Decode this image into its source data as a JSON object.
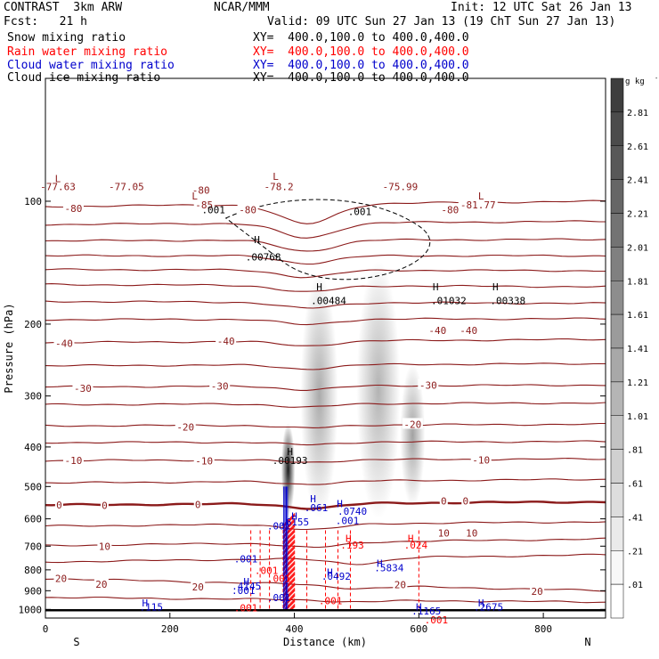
{
  "header": {
    "title_left": "CONTRAST  3km ARW",
    "fcst": "Fcst:   21 h",
    "center": "NCAR/MMM",
    "init": "Init: 12 UTC Sat 26 Jan 13",
    "valid": "Valid: 09 UTC Sun 27 Jan 13 (19 ChT Sun 27 Jan 13)"
  },
  "legend": [
    {
      "label": "Snow mixing ratio",
      "xy": "",
      "color": "#000000"
    },
    {
      "label": "Rain water mixing ratio",
      "xy": "XY=  400.0,100.0 to 400.0,400.0",
      "color": "#ff0000"
    },
    {
      "label": "Cloud water mixing ratio",
      "xy": "XY=  400.0,100.0 to 400.0,400.0",
      "color": "#0000cc"
    },
    {
      "label": "Cloud ice mixing ratio",
      "xy": "XY=  400.0,100.0 to 400.0,400.0",
      "color": "#000000"
    }
  ],
  "top_xy": "XY=  400.0,100.0 to 400.0,400.0",
  "colors": {
    "temperature": "#8b1a1a",
    "rain": "#ff0000",
    "cloud_water": "#0000cc",
    "ice": "#000000"
  },
  "chart_data": {
    "type": "heatmap",
    "xlabel": "Distance (km)",
    "ylabel": "Pressure (hPa)",
    "x_range": [
      0,
      900
    ],
    "y_range": [
      1050,
      50
    ],
    "y_scale": "log",
    "x_ticks": [
      "0",
      "200",
      "400",
      "600",
      "800"
    ],
    "x_tick_values": [
      0,
      200,
      400,
      600,
      800
    ],
    "y_ticks": [
      "100",
      "200",
      "300",
      "400",
      "500",
      "600",
      "700",
      "800",
      "900",
      "1000"
    ],
    "y_tick_values": [
      100,
      200,
      300,
      400,
      500,
      600,
      700,
      800,
      900,
      1000
    ],
    "x_end_labels": {
      "left": "S",
      "right": "N"
    },
    "colorbar": {
      "unit": "g kg",
      "unit_exp": "-1",
      "labels": [
        "2.81",
        "2.61",
        "2.41",
        "2.21",
        "2.01",
        "1.81",
        "1.61",
        "1.41",
        "1.21",
        "1.01",
        ".81",
        ".61",
        ".41",
        ".21",
        ".01"
      ],
      "values": [
        2.81,
        2.61,
        2.41,
        2.21,
        2.01,
        1.81,
        1.61,
        1.41,
        1.21,
        1.01,
        0.81,
        0.61,
        0.41,
        0.21,
        0.01
      ]
    },
    "snow_shading": [
      {
        "x": 390,
        "p_top": 350,
        "p_bot": 590,
        "width_km": 22,
        "max": 2.7
      },
      {
        "x": 440,
        "p_top": 150,
        "p_bot": 600,
        "width_km": 60,
        "max": 1.0
      },
      {
        "x": 535,
        "p_top": 140,
        "p_bot": 600,
        "width_km": 70,
        "max": 0.9
      },
      {
        "x": 590,
        "p_top": 250,
        "p_bot": 560,
        "width_km": 40,
        "max": 1.1
      }
    ],
    "temperature_isotherms": [
      {
        "label": "-80",
        "p_west": 103,
        "p_east": 100,
        "dip_x": 420,
        "dip_p": 12
      },
      {
        "label": "-75",
        "p_west": 114,
        "p_east": 112,
        "dip_x": 420,
        "dip_p": 10
      },
      {
        "label": "-70",
        "p_west": 125,
        "p_east": 124,
        "dip_x": 420,
        "dip_p": 8
      },
      {
        "label": "-65",
        "p_west": 136,
        "p_east": 136,
        "dip_x": 420,
        "dip_p": 6
      },
      {
        "label": "-60",
        "p_west": 147,
        "p_east": 148,
        "dip_x": 420,
        "dip_p": 6
      },
      {
        "label": "-55",
        "p_west": 160,
        "p_east": 162,
        "dip_x": 420,
        "dip_p": 6
      },
      {
        "label": "-50",
        "p_west": 176,
        "p_east": 178,
        "dip_x": 420,
        "dip_p": 6
      },
      {
        "label": "-45",
        "p_west": 195,
        "p_east": 194,
        "dip_x": 420,
        "dip_p": 6
      },
      {
        "label": "-40",
        "p_west": 222,
        "p_east": 218,
        "dip_x": 420,
        "dip_p": 6
      },
      {
        "label": "-35",
        "p_west": 253,
        "p_east": 250,
        "dip_x": 420,
        "dip_p": 6
      },
      {
        "label": "-30",
        "p_west": 285,
        "p_east": 282,
        "dip_x": 420,
        "dip_p": 6
      },
      {
        "label": "-25",
        "p_west": 315,
        "p_east": 312,
        "dip_x": 420,
        "dip_p": 6
      },
      {
        "label": "-20",
        "p_west": 355,
        "p_east": 352,
        "dip_x": 420,
        "dip_p": 6
      },
      {
        "label": "-15",
        "p_west": 390,
        "p_east": 388,
        "dip_x": 420,
        "dip_p": 6
      },
      {
        "label": "-10",
        "p_west": 432,
        "p_east": 428,
        "dip_x": 420,
        "dip_p": 6
      },
      {
        "label": "-5",
        "p_west": 490,
        "p_east": 480,
        "dip_x": 420,
        "dip_p": 8
      },
      {
        "label": "0",
        "p_west": 555,
        "p_east": 545,
        "dip_x": 430,
        "dip_p": 15
      },
      {
        "label": "5",
        "p_west": 625,
        "p_east": 610,
        "dip_x": 430,
        "dip_p": 20
      },
      {
        "label": "10",
        "p_west": 698,
        "p_east": 672,
        "dip_x": 430,
        "dip_p": 20
      },
      {
        "label": "15",
        "p_west": 765,
        "p_east": 735,
        "dip_x": 500,
        "dip_p": 25
      },
      {
        "label": "20",
        "p_west": 840,
        "p_east": 900,
        "dip_x": 500,
        "dip_p": 15
      },
      {
        "label": "25",
        "p_west": 935,
        "p_east": 960,
        "dip_x": 500,
        "dip_p": 10
      }
    ],
    "temperature_labels": [
      {
        "text": "-77.63",
        "x": 20,
        "p": 92
      },
      {
        "text": "-77.05",
        "x": 130,
        "p": 92
      },
      {
        "text": "-78.2",
        "x": 375,
        "p": 92
      },
      {
        "text": "-75.99",
        "x": 570,
        "p": 92
      },
      {
        "text": "-81.77",
        "x": 695,
        "p": 102
      },
      {
        "text": "-80",
        "x": 250,
        "p": 94
      },
      {
        "text": "-80",
        "x": 45,
        "p": 104
      },
      {
        "text": "-80",
        "x": 325,
        "p": 105
      },
      {
        "text": "-80",
        "x": 650,
        "p": 105
      },
      {
        "text": "-85",
        "x": 255,
        "p": 102
      },
      {
        "text": "-40",
        "x": 30,
        "p": 223
      },
      {
        "text": "-40",
        "x": 290,
        "p": 220
      },
      {
        "text": "-40",
        "x": 630,
        "p": 207
      },
      {
        "text": "-40",
        "x": 680,
        "p": 207
      },
      {
        "text": "-30",
        "x": 60,
        "p": 287
      },
      {
        "text": "-30",
        "x": 280,
        "p": 284
      },
      {
        "text": "-30",
        "x": 615,
        "p": 282
      },
      {
        "text": "-20",
        "x": 225,
        "p": 357
      },
      {
        "text": "-20",
        "x": 590,
        "p": 352
      },
      {
        "text": "-10",
        "x": 45,
        "p": 432
      },
      {
        "text": "-10",
        "x": 255,
        "p": 433
      },
      {
        "text": "-10",
        "x": 700,
        "p": 430
      },
      {
        "text": "0",
        "x": 22,
        "p": 555
      },
      {
        "text": "0",
        "x": 95,
        "p": 556
      },
      {
        "text": "0",
        "x": 245,
        "p": 553
      },
      {
        "text": "0",
        "x": 640,
        "p": 543
      },
      {
        "text": "0",
        "x": 675,
        "p": 543
      },
      {
        "text": "10",
        "x": 640,
        "p": 650
      },
      {
        "text": "10",
        "x": 685,
        "p": 650
      },
      {
        "text": "10",
        "x": 95,
        "p": 700
      },
      {
        "text": "20",
        "x": 25,
        "p": 840
      },
      {
        "text": "20",
        "x": 90,
        "p": 867
      },
      {
        "text": "20",
        "x": 245,
        "p": 880
      },
      {
        "text": "20",
        "x": 570,
        "p": 870
      },
      {
        "text": "20",
        "x": 790,
        "p": 903
      }
    ],
    "annotations": [
      {
        "text": "L",
        "x": 20,
        "p": 88,
        "color": "#8b1a1a"
      },
      {
        "text": "L",
        "x": 240,
        "p": 97,
        "color": "#8b1a1a"
      },
      {
        "text": "L",
        "x": 370,
        "p": 87,
        "color": "#8b1a1a"
      },
      {
        "text": "L",
        "x": 700,
        "p": 97,
        "color": "#8b1a1a"
      },
      {
        "text": ".001",
        "x": 270,
        "p": 105,
        "color": "#000000"
      },
      {
        "text": ".001",
        "x": 505,
        "p": 106,
        "color": "#000000"
      },
      {
        "text": "H",
        "x": 340,
        "p": 124,
        "color": "#000000"
      },
      {
        "text": ".00768",
        "x": 350,
        "p": 137,
        "color": "#000000"
      },
      {
        "text": "H",
        "x": 440,
        "p": 162,
        "color": "#000000"
      },
      {
        "text": ".00484",
        "x": 455,
        "p": 175,
        "color": "#000000"
      },
      {
        "text": "H",
        "x": 627,
        "p": 162,
        "color": "#000000"
      },
      {
        "text": ".01032",
        "x": 648,
        "p": 175,
        "color": "#000000"
      },
      {
        "text": "H",
        "x": 723,
        "p": 162,
        "color": "#000000"
      },
      {
        "text": ".00338",
        "x": 743,
        "p": 175,
        "color": "#000000"
      },
      {
        "text": "H",
        "x": 393,
        "p": 410,
        "color": "#000000"
      },
      {
        "text": ".00193",
        "x": 393,
        "p": 432,
        "color": "#000000"
      },
      {
        "text": "H",
        "x": 430,
        "p": 535,
        "color": "#0000cc"
      },
      {
        "text": ".061",
        "x": 435,
        "p": 563,
        "color": "#0000cc"
      },
      {
        "text": "H",
        "x": 473,
        "p": 550,
        "color": "#0000cc"
      },
      {
        "text": ".0740",
        "x": 493,
        "p": 575,
        "color": "#0000cc"
      },
      {
        "text": "H",
        "x": 400,
        "p": 590,
        "color": "#0000cc"
      },
      {
        "text": ".6155",
        "x": 400,
        "p": 610,
        "color": "#0000cc"
      },
      {
        "text": ".001",
        "x": 485,
        "p": 605,
        "color": "#0000cc"
      },
      {
        "text": ".001",
        "x": 375,
        "p": 625,
        "color": "#0000cc"
      },
      {
        "text": "H",
        "x": 487,
        "p": 670,
        "color": "#ff0000"
      },
      {
        "text": ".193",
        "x": 493,
        "p": 695,
        "color": "#ff0000"
      },
      {
        "text": "H",
        "x": 587,
        "p": 670,
        "color": "#ff0000"
      },
      {
        "text": ".024",
        "x": 595,
        "p": 695,
        "color": "#ff0000"
      },
      {
        "text": ".001",
        "x": 322,
        "p": 752,
        "color": "#0000cc"
      },
      {
        "text": "H",
        "x": 537,
        "p": 770,
        "color": "#0000cc"
      },
      {
        "text": ".5834",
        "x": 552,
        "p": 790,
        "color": "#0000cc"
      },
      {
        "text": ".001",
        "x": 355,
        "p": 803,
        "color": "#ff0000"
      },
      {
        "text": "H",
        "x": 457,
        "p": 810,
        "color": "#0000cc"
      },
      {
        "text": ".0492",
        "x": 467,
        "p": 830,
        "color": "#0000cc"
      },
      {
        "text": ".001",
        "x": 375,
        "p": 840,
        "color": "#ff0000"
      },
      {
        "text": "H",
        "x": 323,
        "p": 855,
        "color": "#0000cc"
      },
      {
        "text": ".4145",
        "x": 323,
        "p": 877,
        "color": "#0000cc"
      },
      {
        "text": ".001",
        "x": 318,
        "p": 898,
        "color": "#0000cc"
      },
      {
        "text": ".001",
        "x": 375,
        "p": 935,
        "color": "#0000cc"
      },
      {
        "text": ".001",
        "x": 458,
        "p": 952,
        "color": "#ff0000"
      },
      {
        "text": "H",
        "x": 160,
        "p": 965,
        "color": "#0000cc"
      },
      {
        "text": ".115",
        "x": 170,
        "p": 985,
        "color": "#0000cc"
      },
      {
        "text": "H",
        "x": 700,
        "p": 965,
        "color": "#0000cc"
      },
      {
        "text": ".2675",
        "x": 712,
        "p": 985,
        "color": "#0000cc"
      },
      {
        "text": "H",
        "x": 600,
        "p": 985,
        "color": "#0000cc"
      },
      {
        "text": ".1165",
        "x": 612,
        "p": 1008,
        "color": "#0000cc"
      },
      {
        "text": ".001",
        "x": 628,
        "p": 1060,
        "color": "#ff0000"
      },
      {
        "text": ".001",
        "x": 322,
        "p": 990,
        "color": "#ff0000"
      }
    ]
  }
}
